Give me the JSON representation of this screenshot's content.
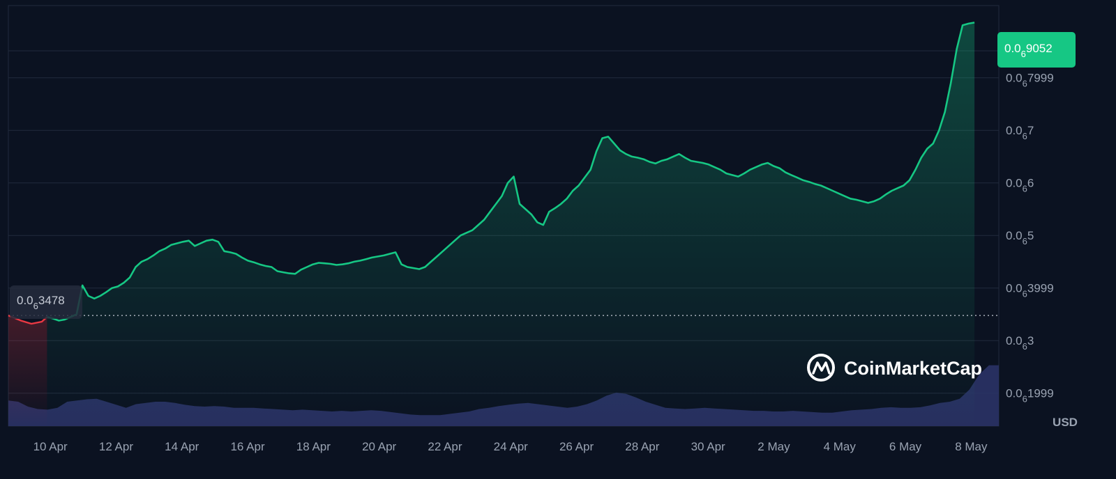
{
  "chart_data": {
    "type": "area",
    "title": "",
    "xlabel": "",
    "ylabel": "",
    "currency": "USD",
    "x_ticks": [
      "10 Apr",
      "12 Apr",
      "14 Apr",
      "16 Apr",
      "18 Apr",
      "20 Apr",
      "22 Apr",
      "24 Apr",
      "26 Apr",
      "28 Apr",
      "30 Apr",
      "2 May",
      "4 May",
      "6 May",
      "8 May"
    ],
    "y_ticks": [
      {
        "value": 1.9999e-07,
        "prefix": "0.0",
        "sub": "6",
        "digits": "1999"
      },
      {
        "value": 3e-07,
        "prefix": "0.0",
        "sub": "6",
        "digits": "3"
      },
      {
        "value": 3.9999e-07,
        "prefix": "0.0",
        "sub": "6",
        "digits": "3999"
      },
      {
        "value": 5e-07,
        "prefix": "0.0",
        "sub": "6",
        "digits": "5"
      },
      {
        "value": 6e-07,
        "prefix": "0.0",
        "sub": "6",
        "digits": "6"
      },
      {
        "value": 7e-07,
        "prefix": "0.0",
        "sub": "6",
        "digits": "7"
      },
      {
        "value": 7.9999e-07,
        "prefix": "0.0",
        "sub": "6",
        "digits": "7999"
      }
    ],
    "y_range": [
      1.4e-07,
      9.4e-07
    ],
    "current_price": {
      "value": 9.052e-07,
      "prefix": "0.0",
      "sub": "6",
      "digits": "9052"
    },
    "start_price": {
      "value": 3.478e-07,
      "prefix": "0.0",
      "sub": "6",
      "digits": "3478"
    },
    "price_series": {
      "x_start": "9 Apr",
      "x_step_days": 0.5,
      "values_e9": [
        345,
        342,
        338,
        340,
        345,
        350,
        405,
        385,
        380,
        385,
        392,
        400,
        403,
        410,
        420,
        440,
        450,
        455,
        462,
        470,
        475,
        482,
        485,
        488,
        490,
        480,
        485,
        490,
        492,
        488,
        470,
        468,
        465,
        458,
        452,
        449,
        445,
        442,
        440,
        432,
        430,
        428,
        427,
        435,
        440,
        445,
        448,
        447,
        446,
        444,
        445,
        447,
        450,
        452,
        455,
        458,
        460,
        462,
        465,
        468,
        445,
        440,
        438,
        436,
        440,
        450,
        460,
        470,
        480,
        490,
        500,
        505,
        510,
        520,
        530,
        545,
        560,
        575,
        600,
        612,
        560,
        550,
        540,
        525,
        520,
        545,
        552,
        560,
        570,
        585,
        595,
        610,
        625,
        660,
        685,
        688,
        675,
        662,
        655,
        650,
        648,
        645,
        640,
        637,
        642,
        645,
        650,
        655,
        648,
        642,
        640,
        638,
        635,
        630,
        625,
        618,
        615,
        612,
        618,
        625,
        630,
        635,
        638,
        632,
        628,
        620,
        615,
        610,
        605,
        602,
        598,
        595,
        590,
        585,
        580,
        575,
        570,
        568,
        565,
        562,
        565,
        570,
        578,
        585,
        590,
        595,
        605,
        625,
        648,
        665,
        675,
        700,
        735,
        790,
        855,
        900,
        903,
        905
      ]
    },
    "volume_series": {
      "x_start": "9 Apr",
      "x_step_days": 0.5,
      "values_rel": [
        0.42,
        0.4,
        0.32,
        0.28,
        0.27,
        0.3,
        0.4,
        0.42,
        0.44,
        0.45,
        0.4,
        0.35,
        0.3,
        0.36,
        0.38,
        0.4,
        0.4,
        0.38,
        0.35,
        0.33,
        0.32,
        0.33,
        0.32,
        0.3,
        0.3,
        0.3,
        0.29,
        0.28,
        0.27,
        0.26,
        0.27,
        0.26,
        0.25,
        0.24,
        0.25,
        0.24,
        0.25,
        0.26,
        0.25,
        0.23,
        0.21,
        0.19,
        0.18,
        0.18,
        0.18,
        0.2,
        0.22,
        0.24,
        0.28,
        0.3,
        0.33,
        0.35,
        0.37,
        0.38,
        0.36,
        0.34,
        0.32,
        0.3,
        0.32,
        0.36,
        0.42,
        0.5,
        0.55,
        0.53,
        0.47,
        0.4,
        0.35,
        0.3,
        0.29,
        0.28,
        0.29,
        0.3,
        0.29,
        0.28,
        0.27,
        0.26,
        0.25,
        0.25,
        0.24,
        0.24,
        0.25,
        0.24,
        0.23,
        0.22,
        0.22,
        0.24,
        0.26,
        0.27,
        0.28,
        0.3,
        0.31,
        0.3,
        0.3,
        0.31,
        0.34,
        0.38,
        0.4,
        0.45,
        0.6,
        0.85,
        1.0,
        1.0
      ]
    },
    "grid": true,
    "line_color": "#16c784",
    "start_marker_color": "#ea3943",
    "volume_color": "#2a3366",
    "badge_color": "#16c784",
    "background": "#0b1221"
  },
  "watermark": {
    "text": "CoinMarketCap",
    "icon": "coinmarketcap-logo-icon"
  }
}
